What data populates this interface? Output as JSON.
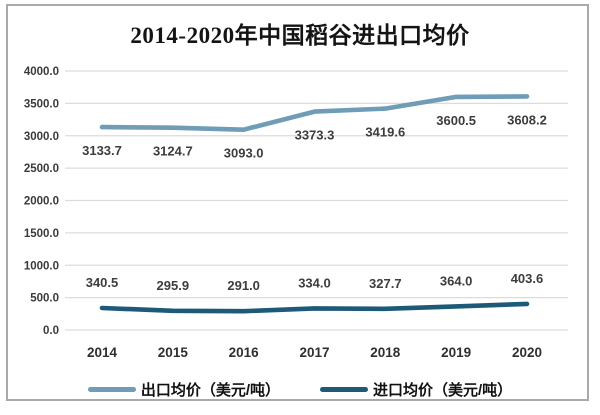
{
  "chart_data": {
    "type": "line",
    "title": "2014-2020年中国稻谷进出口均价",
    "categories": [
      "2014",
      "2015",
      "2016",
      "2017",
      "2018",
      "2019",
      "2020"
    ],
    "series": [
      {
        "name": "出口均价（美元/吨）",
        "color": "#6f9cb6",
        "values": [
          3133.7,
          3124.7,
          3093.0,
          3373.3,
          3419.6,
          3600.5,
          3608.2
        ],
        "label_position": "below"
      },
      {
        "name": "进口均价（美元/吨）",
        "color": "#1d5a77",
        "values": [
          340.5,
          295.9,
          291.0,
          334.0,
          327.7,
          364.0,
          403.6
        ],
        "label_position": "above"
      }
    ],
    "xlabel": "",
    "ylabel": "",
    "ylim": [
      0,
      4000
    ],
    "ytick_step": 500,
    "yticks": [
      "4000.0",
      "3500.0",
      "3000.0",
      "2500.0",
      "2000.0",
      "1500.0",
      "1000.0",
      "500.0",
      "0.0"
    ],
    "grid": true,
    "legend_position": "bottom",
    "gridline_color": "#dcdcdc",
    "frame_border_color": "#a9a9a9",
    "text_color": "#3d3d3d"
  }
}
